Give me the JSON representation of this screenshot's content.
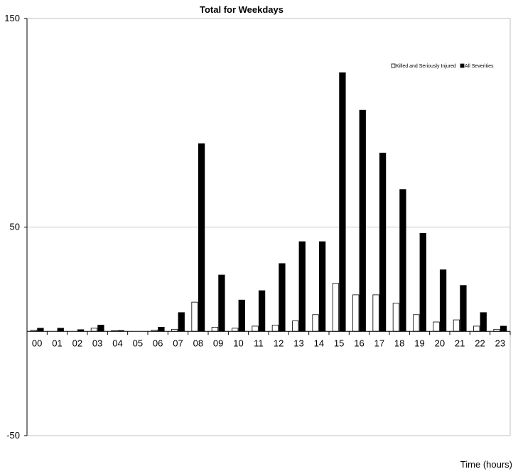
{
  "chart_data": {
    "type": "bar",
    "title": "Total for Weekdays",
    "xlabel": "Time (hours)",
    "ylabel": "",
    "ylim": [
      -50,
      150
    ],
    "yticks": [
      "150",
      "50",
      "-50"
    ],
    "ytick_values": [
      150,
      50,
      -50
    ],
    "grid": "horizontal",
    "legend_position": "top-right",
    "categories": [
      "00",
      "01",
      "02",
      "03",
      "04",
      "05",
      "06",
      "07",
      "08",
      "09",
      "10",
      "11",
      "12",
      "13",
      "14",
      "15",
      "16",
      "17",
      "18",
      "19",
      "20",
      "21",
      "22",
      "23"
    ],
    "series": [
      {
        "name": "Killed and Seriously Injured",
        "color": "#ffffff",
        "values": [
          0.5,
          0,
          0,
          1.5,
          0.3,
          0,
          0.5,
          1,
          14,
          2,
          1.5,
          2.5,
          3,
          5,
          8,
          23,
          17.5,
          17.5,
          13.5,
          8,
          4.5,
          5.5,
          2.5,
          1
        ]
      },
      {
        "name": "All Severities",
        "color": "#000000",
        "values": [
          1.5,
          1.5,
          0.8,
          3,
          0.4,
          0,
          2,
          9,
          90,
          27,
          15,
          19.5,
          32.5,
          43,
          43,
          124,
          106,
          85.5,
          68,
          47,
          29.5,
          22,
          9,
          2.5
        ]
      }
    ]
  }
}
